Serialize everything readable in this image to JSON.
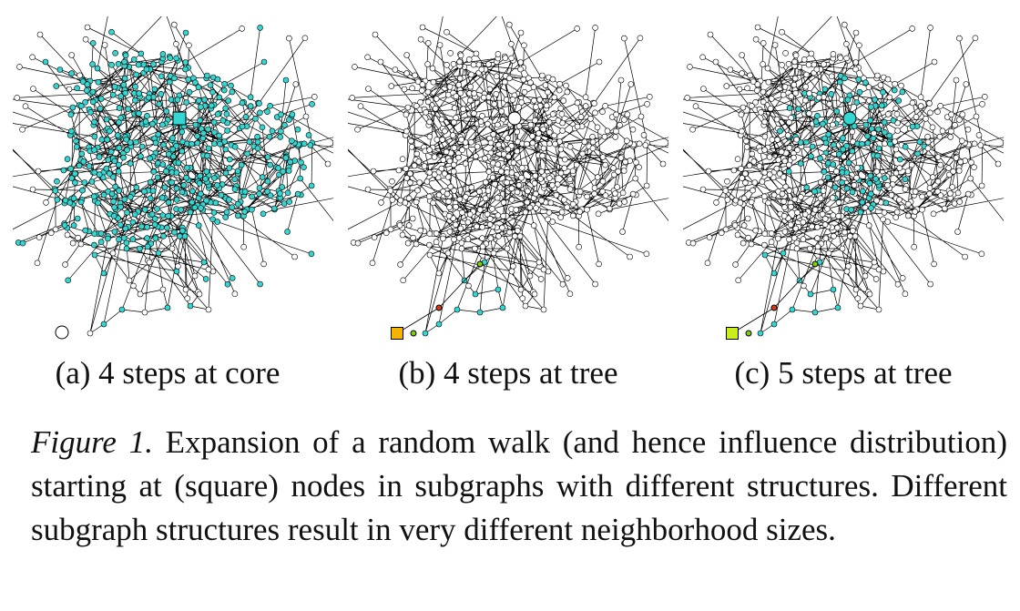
{
  "figure": {
    "panels": [
      {
        "id": "a",
        "caption": "(a) 4 steps at core",
        "start": "core",
        "steps": 4,
        "start_shape": "square",
        "start_color": "#33d6d0",
        "end_marker": "circle-white"
      },
      {
        "id": "b",
        "caption": "(b) 4 steps at tree",
        "start": "tree",
        "steps": 4,
        "start_shape": "square",
        "start_color": "#f5b400"
      },
      {
        "id": "c",
        "caption": "(c) 5 steps at tree",
        "start": "tree",
        "steps": 5,
        "start_shape": "square",
        "start_color": "#c8ef1a"
      }
    ],
    "caption_label": "Figure 1.",
    "caption_text": " Expansion of a random walk (and hence influence distribution) starting at (square) nodes in subgraphs with different structures. Different subgraph structures result in very different neighborhood sizes."
  },
  "colors": {
    "edge": "#000000",
    "node_outline": "#000000",
    "node_unvisited": "#ffffff",
    "node_visited": "#33d6d0",
    "walk_red": "#d93a1a",
    "walk_green": "#7fd000"
  }
}
